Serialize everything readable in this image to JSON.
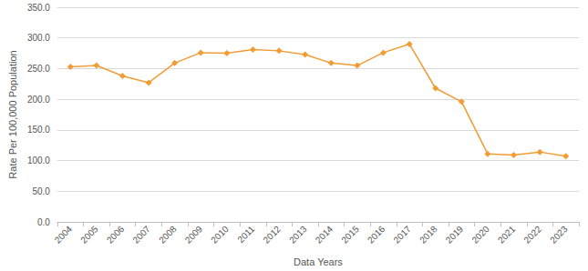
{
  "chart_data": {
    "type": "line",
    "x_label": "Data Years",
    "y_label": "Rate Per 100,000 Population",
    "categories": [
      "2004",
      "2005",
      "2006",
      "2007",
      "2008",
      "2009",
      "2010",
      "2011",
      "2012",
      "2013",
      "2014",
      "2015",
      "2016",
      "2017",
      "2018",
      "2019",
      "2020",
      "2021",
      "2022",
      "2023"
    ],
    "values": [
      253,
      255,
      238,
      227,
      259,
      276,
      275,
      281,
      279,
      273,
      259,
      255,
      276,
      290,
      218,
      196,
      111,
      109,
      114,
      107
    ],
    "color": "#f39c34",
    "marker": "diamond",
    "ylim": [
      0,
      350
    ],
    "yticks": [
      {
        "value": 0,
        "label": "0.0"
      },
      {
        "value": 50,
        "label": "50.0"
      },
      {
        "value": 100,
        "label": "100.0"
      },
      {
        "value": 150,
        "label": "150.0"
      },
      {
        "value": 200,
        "label": "200.0"
      },
      {
        "value": 250,
        "label": "250.0"
      },
      {
        "value": 300,
        "label": "300.0"
      },
      {
        "value": 350,
        "label": "350.0"
      }
    ],
    "grid": true
  }
}
